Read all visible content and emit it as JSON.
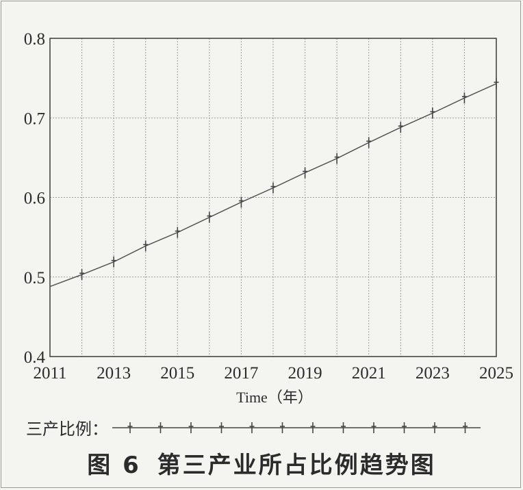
{
  "chart_data": {
    "type": "line",
    "x": [
      2011,
      2012,
      2013,
      2014,
      2015,
      2016,
      2017,
      2018,
      2019,
      2020,
      2021,
      2022,
      2023,
      2024,
      2025
    ],
    "series": [
      {
        "name": "三产比例：",
        "values": [
          0.488,
          0.503,
          0.519,
          0.539,
          0.556,
          0.575,
          0.594,
          0.612,
          0.631,
          0.649,
          0.669,
          0.688,
          0.706,
          0.725,
          0.743
        ],
        "color": "#555555",
        "marker": "plus"
      }
    ],
    "xlim": [
      2011,
      2025
    ],
    "ylim": [
      0.4,
      0.8
    ],
    "xticks": [
      "2011",
      "2013",
      "2015",
      "2017",
      "2019",
      "2021",
      "2023",
      "2025"
    ],
    "yticks": [
      "0.4",
      "0.5",
      "0.6",
      "0.7",
      "0.8"
    ],
    "xlabel": "Time（年）",
    "ylabel": "",
    "grid": true,
    "legend_position": "bottom"
  },
  "caption": {
    "figure_no": "图 6",
    "title": "第三产业所占比例趋势图"
  }
}
